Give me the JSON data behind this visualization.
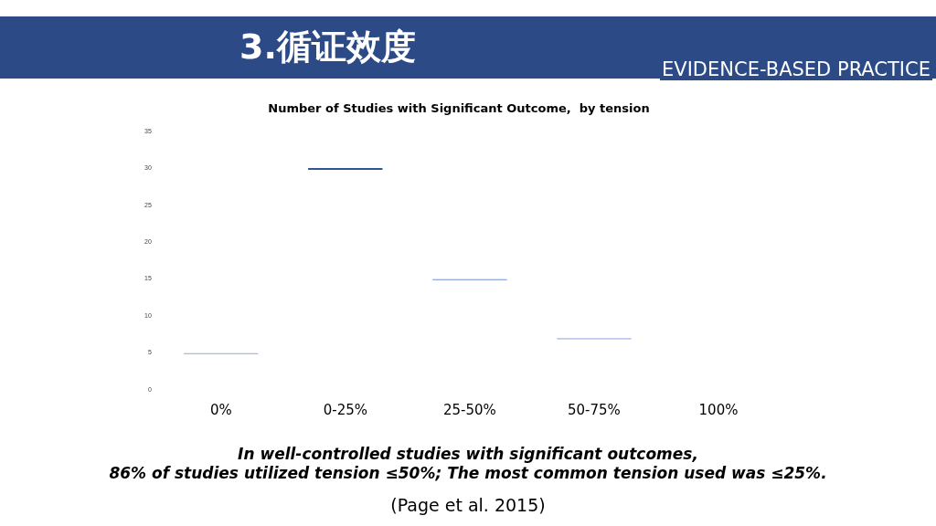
{
  "chart_data": {
    "type": "bar",
    "title": "Number of Studies with Significant Outcome,  by tension",
    "categories": [
      "0%",
      "0-25%",
      "25-50%",
      "50-75%",
      "100%"
    ],
    "values": [
      5,
      30,
      15,
      7,
      null
    ],
    "colors": [
      "#8faadc",
      "#2f5597",
      "#6f8fd0",
      "#8fa8dc",
      "#8fa8dc"
    ],
    "ylim": [
      0,
      35
    ],
    "yticks": [
      0,
      5,
      10,
      15,
      20,
      25,
      30,
      35
    ],
    "grid": false,
    "legend": false,
    "annotations": [
      "3.循证效度",
      "EVIDENCE-BASED PRACTICE",
      "In well-controlled studies with significant outcomes,",
      "86% of studies utilized tension ≤50%; The most common tension used was ≤25%.",
      "(Page et al. 2015)"
    ]
  }
}
